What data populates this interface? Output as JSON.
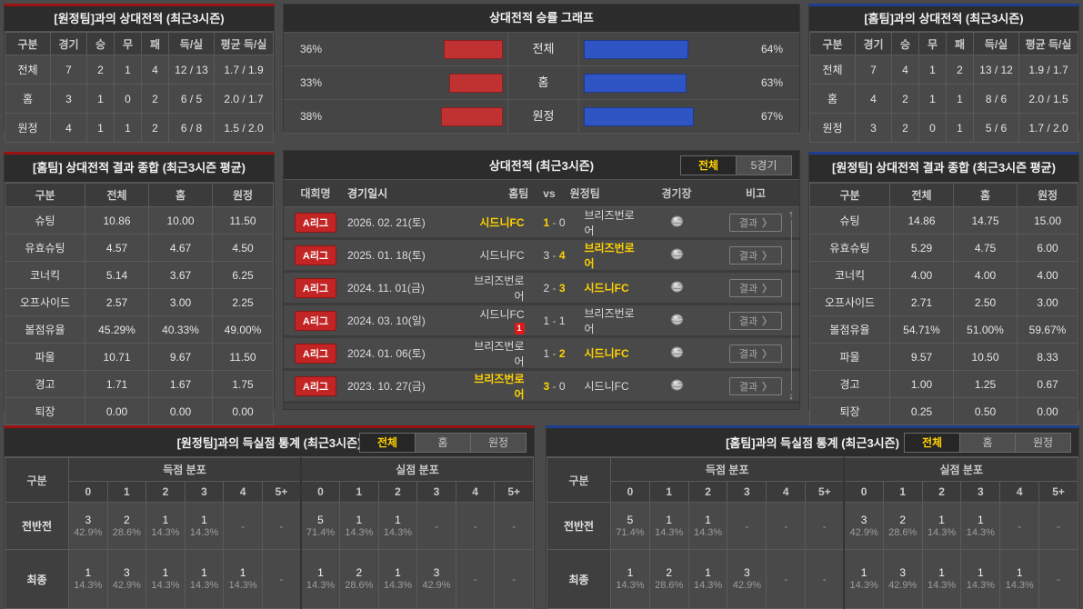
{
  "icons": {
    "scroll_up": "↑",
    "scroll_down": "↓",
    "chevron": "〉",
    "dash": "-",
    "stadium": "globe"
  },
  "colors": {
    "accent_home": "#9c1212",
    "accent_away": "#1d3f8f",
    "bar_red": "#c03232",
    "bar_blue": "#2f55c4",
    "highlight_yellow": "#ffd200",
    "league_badge_red": "#c32424"
  },
  "top_left": {
    "title": "[원정팀]과의 상대전적 (최근3시즌)",
    "headers": [
      "구분",
      "경기",
      "승",
      "무",
      "패",
      "득/실",
      "평균 득/실"
    ],
    "rows": [
      [
        "전체",
        "7",
        "2",
        "1",
        "4",
        "12 / 13",
        "1.7 / 1.9"
      ],
      [
        "홈",
        "3",
        "1",
        "0",
        "2",
        "6 / 5",
        "2.0 / 1.7"
      ],
      [
        "원정",
        "4",
        "1",
        "1",
        "2",
        "6 / 8",
        "1.5 / 2.0"
      ]
    ]
  },
  "win_graph": {
    "title": "상대전적 승률 그래프",
    "rows": [
      {
        "label": "전체",
        "left": "36%",
        "left_val": 36,
        "right": "64%",
        "right_val": 64
      },
      {
        "label": "홈",
        "left": "33%",
        "left_val": 33,
        "right": "63%",
        "right_val": 63
      },
      {
        "label": "원정",
        "left": "38%",
        "left_val": 38,
        "right": "67%",
        "right_val": 67
      }
    ]
  },
  "top_right": {
    "title": "[홈팀]과의 상대전적 (최근3시즌)",
    "headers": [
      "구분",
      "경기",
      "승",
      "무",
      "패",
      "득/실",
      "평균 득/실"
    ],
    "rows": [
      [
        "전체",
        "7",
        "4",
        "1",
        "2",
        "13 / 12",
        "1.9 / 1.7"
      ],
      [
        "홈",
        "4",
        "2",
        "1",
        "1",
        "8 / 6",
        "2.0 / 1.5"
      ],
      [
        "원정",
        "3",
        "2",
        "0",
        "1",
        "5 / 6",
        "1.7 / 2.0"
      ]
    ]
  },
  "mid_left": {
    "title": "[홈팀] 상대전적 결과 종합 (최근3시즌 평균)",
    "headers": [
      "구분",
      "전체",
      "홈",
      "원정"
    ],
    "rows": [
      [
        "슈팅",
        "10.86",
        "10.00",
        "11.50"
      ],
      [
        "유효슈팅",
        "4.57",
        "4.67",
        "4.50"
      ],
      [
        "코너킥",
        "5.14",
        "3.67",
        "6.25"
      ],
      [
        "오프사이드",
        "2.57",
        "3.00",
        "2.25"
      ],
      [
        "볼점유율",
        "45.29%",
        "40.33%",
        "49.00%"
      ],
      [
        "파울",
        "10.71",
        "9.67",
        "11.50"
      ],
      [
        "경고",
        "1.71",
        "1.67",
        "1.75"
      ],
      [
        "퇴장",
        "0.00",
        "0.00",
        "0.00"
      ]
    ]
  },
  "mid_right": {
    "title": "[원정팀] 상대전적 결과 종합 (최근3시즌 평균)",
    "headers": [
      "구분",
      "전체",
      "홈",
      "원정"
    ],
    "rows": [
      [
        "슈팅",
        "14.86",
        "14.75",
        "15.00"
      ],
      [
        "유효슈팅",
        "5.29",
        "4.75",
        "6.00"
      ],
      [
        "코너킥",
        "4.00",
        "4.00",
        "4.00"
      ],
      [
        "오프사이드",
        "2.71",
        "2.50",
        "3.00"
      ],
      [
        "볼점유율",
        "54.71%",
        "51.00%",
        "59.67%"
      ],
      [
        "파울",
        "9.57",
        "10.50",
        "8.33"
      ],
      [
        "경고",
        "1.00",
        "1.25",
        "0.67"
      ],
      [
        "퇴장",
        "0.25",
        "0.50",
        "0.00"
      ]
    ]
  },
  "matches": {
    "title": "상대전적 (최근3시즌)",
    "tabs": {
      "items": [
        "전체",
        "5경기"
      ],
      "active": 0
    },
    "headers": [
      "대회명",
      "경기일시",
      "홈팀",
      "vs",
      "원정팀",
      "경기장",
      "비고"
    ],
    "result_label": "결과",
    "rows": [
      {
        "league": "A리그",
        "date": "2026. 02. 21(토)",
        "home": "시드니FC",
        "home_win": true,
        "home_red": null,
        "home_goals": "1",
        "hg_win": true,
        "away_goals": "0",
        "ag_win": false,
        "away": "브리즈번로어",
        "away_win": false
      },
      {
        "league": "A리그",
        "date": "2025. 01. 18(토)",
        "home": "시드니FC",
        "home_win": false,
        "home_red": null,
        "home_goals": "3",
        "hg_win": false,
        "away_goals": "4",
        "ag_win": true,
        "away": "브리즈번로어",
        "away_win": true
      },
      {
        "league": "A리그",
        "date": "2024. 11. 01(금)",
        "home": "브리즈번로어",
        "home_win": false,
        "home_red": null,
        "home_goals": "2",
        "hg_win": false,
        "away_goals": "3",
        "ag_win": true,
        "away": "시드니FC",
        "away_win": true
      },
      {
        "league": "A리그",
        "date": "2024. 03. 10(일)",
        "home": "시드니FC",
        "home_win": false,
        "home_red": "1",
        "home_goals": "1",
        "hg_win": false,
        "away_goals": "1",
        "ag_win": false,
        "away": "브리즈번로어",
        "away_win": false
      },
      {
        "league": "A리그",
        "date": "2024. 01. 06(토)",
        "home": "브리즈번로어",
        "home_win": false,
        "home_red": null,
        "home_goals": "1",
        "hg_win": false,
        "away_goals": "2",
        "ag_win": true,
        "away": "시드니FC",
        "away_win": true
      },
      {
        "league": "A리그",
        "date": "2023. 10. 27(금)",
        "home": "브리즈번로어",
        "home_win": true,
        "home_red": null,
        "home_goals": "3",
        "hg_win": true,
        "away_goals": "0",
        "ag_win": false,
        "away": "시드니FC",
        "away_win": false
      }
    ]
  },
  "bottom_left": {
    "title": "[원정팀]과의 득실점 통계 (최근3시즌)",
    "tabs": {
      "items": [
        "전체",
        "홈",
        "원정"
      ],
      "active": 0
    },
    "corner_label": "구분",
    "group_labels": [
      "득점 분포",
      "실점 분포"
    ],
    "score_cols": [
      "0",
      "1",
      "2",
      "3",
      "4",
      "5+"
    ],
    "rows": [
      {
        "label": "전반전",
        "scored": [
          [
            "3",
            "42.9%"
          ],
          [
            "2",
            "28.6%"
          ],
          [
            "1",
            "14.3%"
          ],
          [
            "1",
            "14.3%"
          ],
          null,
          null
        ],
        "conceded": [
          [
            "5",
            "71.4%"
          ],
          [
            "1",
            "14.3%"
          ],
          [
            "1",
            "14.3%"
          ],
          null,
          null,
          null
        ]
      },
      {
        "label": "최종",
        "scored": [
          [
            "1",
            "14.3%"
          ],
          [
            "3",
            "42.9%"
          ],
          [
            "1",
            "14.3%"
          ],
          [
            "1",
            "14.3%"
          ],
          [
            "1",
            "14.3%"
          ],
          null
        ],
        "conceded": [
          [
            "1",
            "14.3%"
          ],
          [
            "2",
            "28.6%"
          ],
          [
            "1",
            "14.3%"
          ],
          [
            "3",
            "42.9%"
          ],
          null,
          null
        ]
      }
    ]
  },
  "bottom_right": {
    "title": "[홈팀]과의 득실점 통계 (최근3시즌)",
    "tabs": {
      "items": [
        "전체",
        "홈",
        "원정"
      ],
      "active": 0
    },
    "corner_label": "구분",
    "group_labels": [
      "득점 분포",
      "실점 분포"
    ],
    "score_cols": [
      "0",
      "1",
      "2",
      "3",
      "4",
      "5+"
    ],
    "rows": [
      {
        "label": "전반전",
        "scored": [
          [
            "5",
            "71.4%"
          ],
          [
            "1",
            "14.3%"
          ],
          [
            "1",
            "14.3%"
          ],
          null,
          null,
          null
        ],
        "conceded": [
          [
            "3",
            "42.9%"
          ],
          [
            "2",
            "28.6%"
          ],
          [
            "1",
            "14.3%"
          ],
          [
            "1",
            "14.3%"
          ],
          null,
          null
        ]
      },
      {
        "label": "최종",
        "scored": [
          [
            "1",
            "14.3%"
          ],
          [
            "2",
            "28.6%"
          ],
          [
            "1",
            "14.3%"
          ],
          [
            "3",
            "42.9%"
          ],
          null,
          null
        ],
        "conceded": [
          [
            "1",
            "14.3%"
          ],
          [
            "3",
            "42.9%"
          ],
          [
            "1",
            "14.3%"
          ],
          [
            "1",
            "14.3%"
          ],
          [
            "1",
            "14.3%"
          ],
          null
        ]
      }
    ]
  }
}
